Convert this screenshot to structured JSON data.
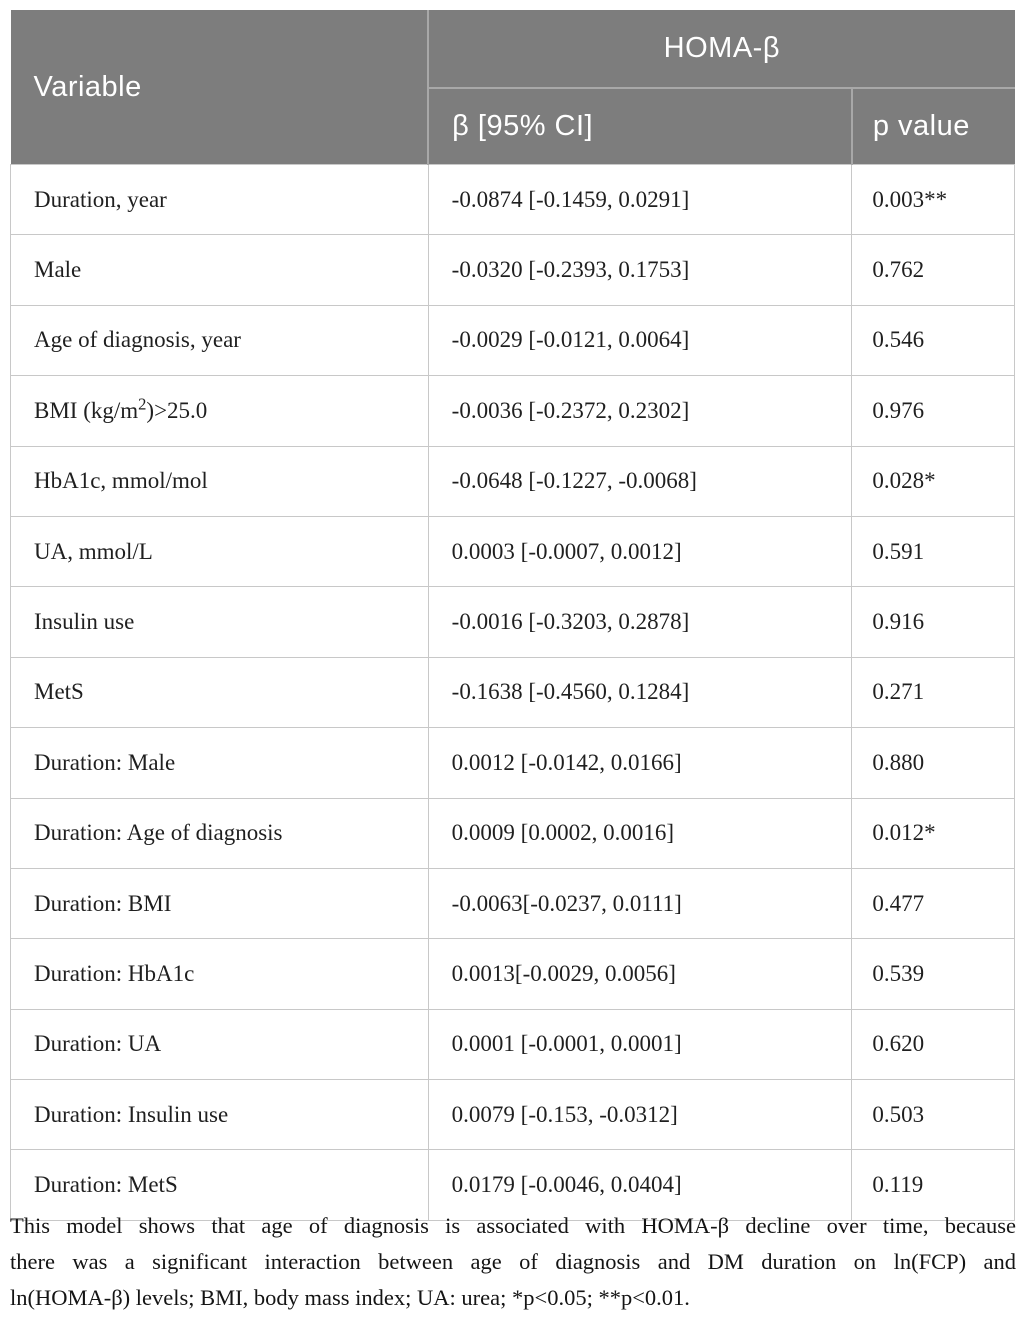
{
  "table": {
    "header": {
      "variable_label": "Variable",
      "group_label": "HOMA-β",
      "beta_col_label": "β [95% CI]",
      "p_col_label": "p value"
    },
    "rows": [
      {
        "variable": "Duration, year",
        "beta": "-0.0874 [-0.1459, 0.0291]",
        "p": "0.003**"
      },
      {
        "variable": "Male",
        "beta": "-0.0320 [-0.2393, 0.1753]",
        "p": "0.762"
      },
      {
        "variable": "Age of diagnosis, year",
        "beta": "-0.0029 [-0.0121, 0.0064]",
        "p": "0.546"
      },
      {
        "variable_pre": "BMI (kg/m",
        "variable_sup": "2",
        "variable_post": ")>25.0",
        "beta": "-0.0036 [-0.2372, 0.2302]",
        "p": "0.976"
      },
      {
        "variable": "HbA1c, mmol/mol",
        "beta": "-0.0648 [-0.1227, -0.0068]",
        "p": "0.028*"
      },
      {
        "variable": "UA, mmol/L",
        "beta": "0.0003 [-0.0007, 0.0012]",
        "p": "0.591"
      },
      {
        "variable": "Insulin use",
        "beta": "-0.0016 [-0.3203, 0.2878]",
        "p": "0.916"
      },
      {
        "variable": "MetS",
        "beta": "-0.1638 [-0.4560, 0.1284]",
        "p": "0.271"
      },
      {
        "variable": "Duration: Male",
        "beta": "0.0012 [-0.0142, 0.0166]",
        "p": "0.880"
      },
      {
        "variable": "Duration: Age of diagnosis",
        "beta": "0.0009 [0.0002, 0.0016]",
        "p": "0.012*"
      },
      {
        "variable": "Duration: BMI",
        "beta": "-0.0063[-0.0237, 0.0111]",
        "p": "0.477"
      },
      {
        "variable": "Duration: HbA1c",
        "beta": "0.0013[-0.0029, 0.0056]",
        "p": "0.539"
      },
      {
        "variable": "Duration: UA",
        "beta": "0.0001 [-0.0001, 0.0001]",
        "p": "0.620"
      },
      {
        "variable": "Duration: Insulin use",
        "beta": "0.0079 [-0.153, -0.0312]",
        "p": "0.503"
      },
      {
        "variable": "Duration: MetS",
        "beta": "0.0179 [-0.0046, 0.0404]",
        "p": "0.119"
      }
    ]
  },
  "footnote": {
    "lines": [
      "This model shows that age of diagnosis is associated with HOMA-β decline over time, because",
      "there was a significant interaction between age of diagnosis and DM duration on ln(FCP) and",
      "ln(HOMA-β) levels; BMI, body mass index; UA: urea; *p<0.05; **p<0.01."
    ]
  },
  "colors": {
    "header_bg": "#7d7d7d",
    "header_text": "#ffffff",
    "header_divider": "#a8a8a8",
    "body_border": "#c8c8c8",
    "body_text": "#1f1f1f"
  }
}
